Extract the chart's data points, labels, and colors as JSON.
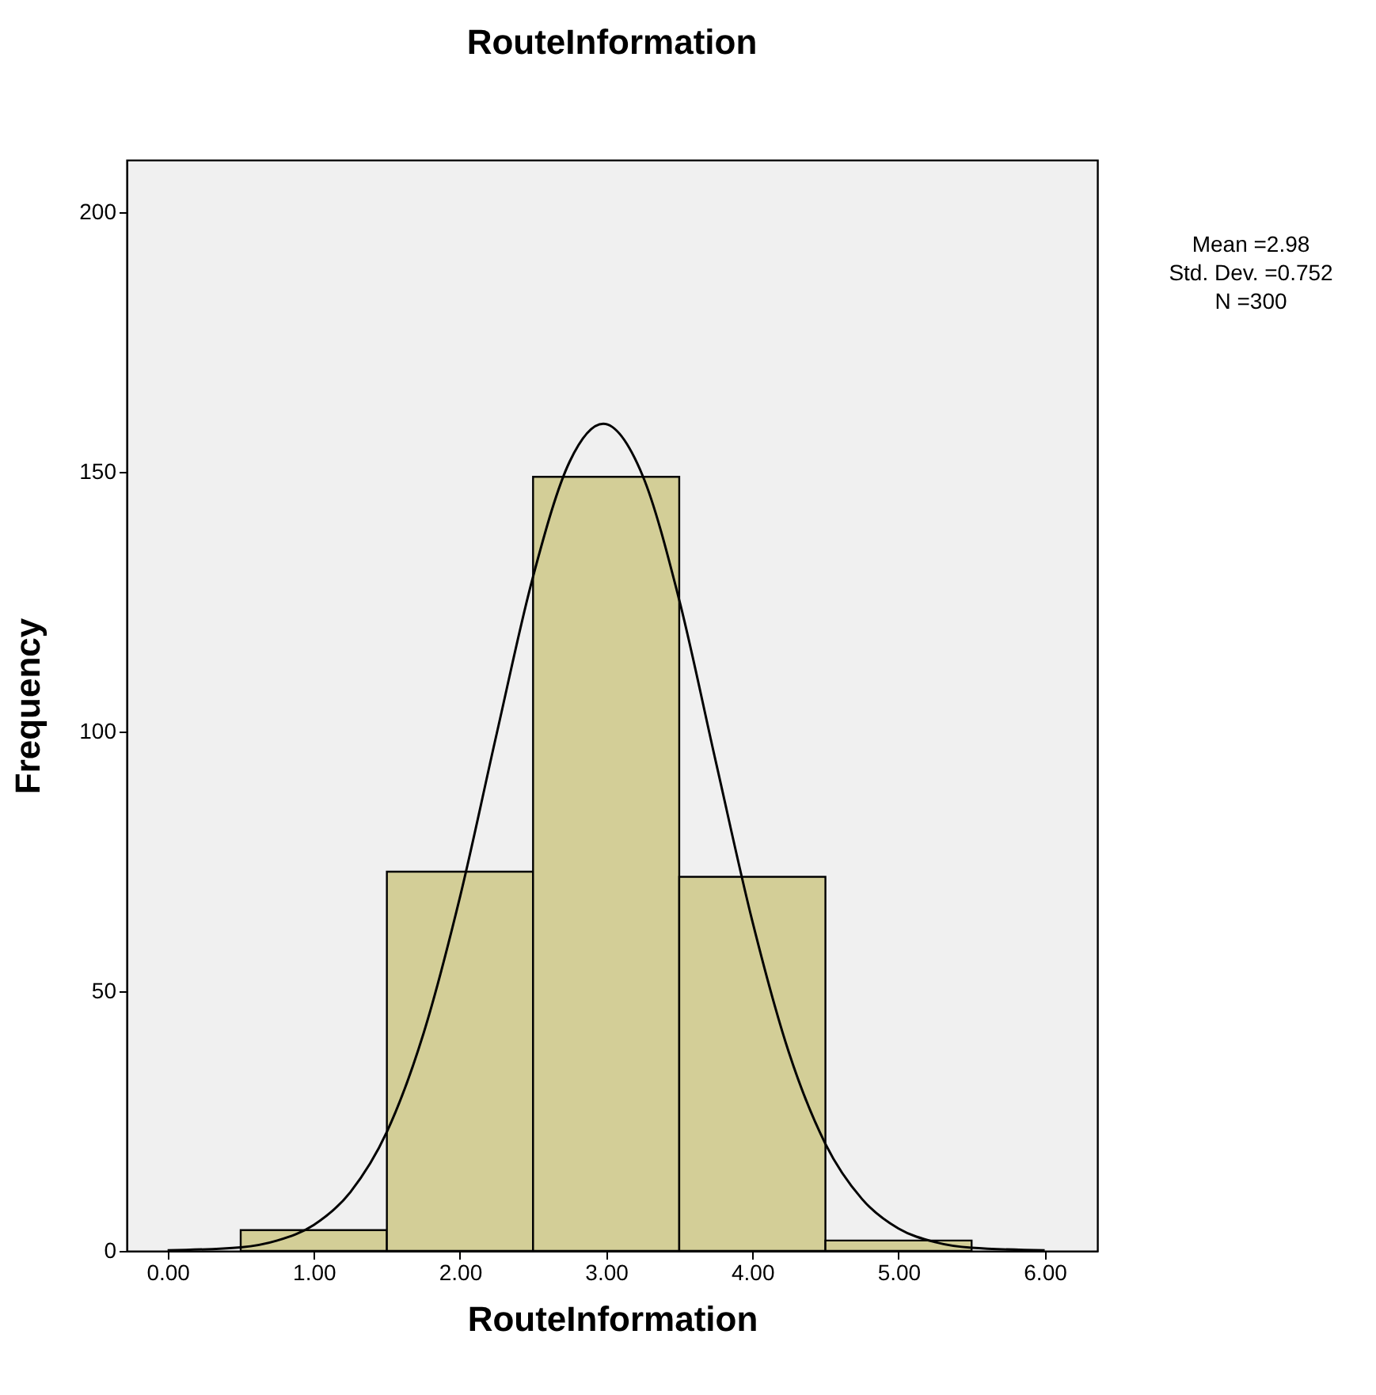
{
  "chart_data": {
    "type": "histogram",
    "title": "RouteInformation",
    "xlabel": "RouteInformation",
    "ylabel": "Frequency",
    "bins": [
      0.5,
      1.5,
      2.5,
      3.5,
      4.5,
      5.5
    ],
    "values": [
      4,
      73,
      149,
      72,
      2
    ],
    "color": "#d3ce97",
    "xlim": [
      -0.28,
      6.36
    ],
    "xticks": [
      {
        "value": 0,
        "label": "0.00"
      },
      {
        "value": 1,
        "label": "1.00"
      },
      {
        "value": 2,
        "label": "2.00"
      },
      {
        "value": 3,
        "label": "3.00"
      },
      {
        "value": 4,
        "label": "4.00"
      },
      {
        "value": 5,
        "label": "5.00"
      },
      {
        "value": 6,
        "label": "6.00"
      }
    ],
    "ylim": [
      0,
      210
    ],
    "yticks": [
      0,
      50,
      100,
      150,
      200
    ],
    "grid": false,
    "annotations": [
      "Mean =2.98",
      "Std. Dev. =0.752",
      "N =300"
    ],
    "series": [
      {
        "type": "line",
        "color": "#000000",
        "x": [
          0,
          0.5,
          0.75,
          1,
          1.25,
          1.5,
          1.75,
          2,
          2.25,
          2.5,
          2.75,
          2.98,
          3.25,
          3.5,
          3.75,
          4,
          4.25,
          4.5,
          4.75,
          5,
          5.25,
          5.5,
          6
        ],
        "values": [
          0.1,
          0.7,
          2,
          5,
          11.3,
          22.9,
          41.8,
          68.1,
          99.4,
          129.8,
          151.9,
          159.2,
          149.2,
          125.3,
          94.2,
          63.5,
          38.2,
          20.6,
          10,
          4.3,
          1.7,
          0.6,
          0.1
        ]
      }
    ]
  }
}
